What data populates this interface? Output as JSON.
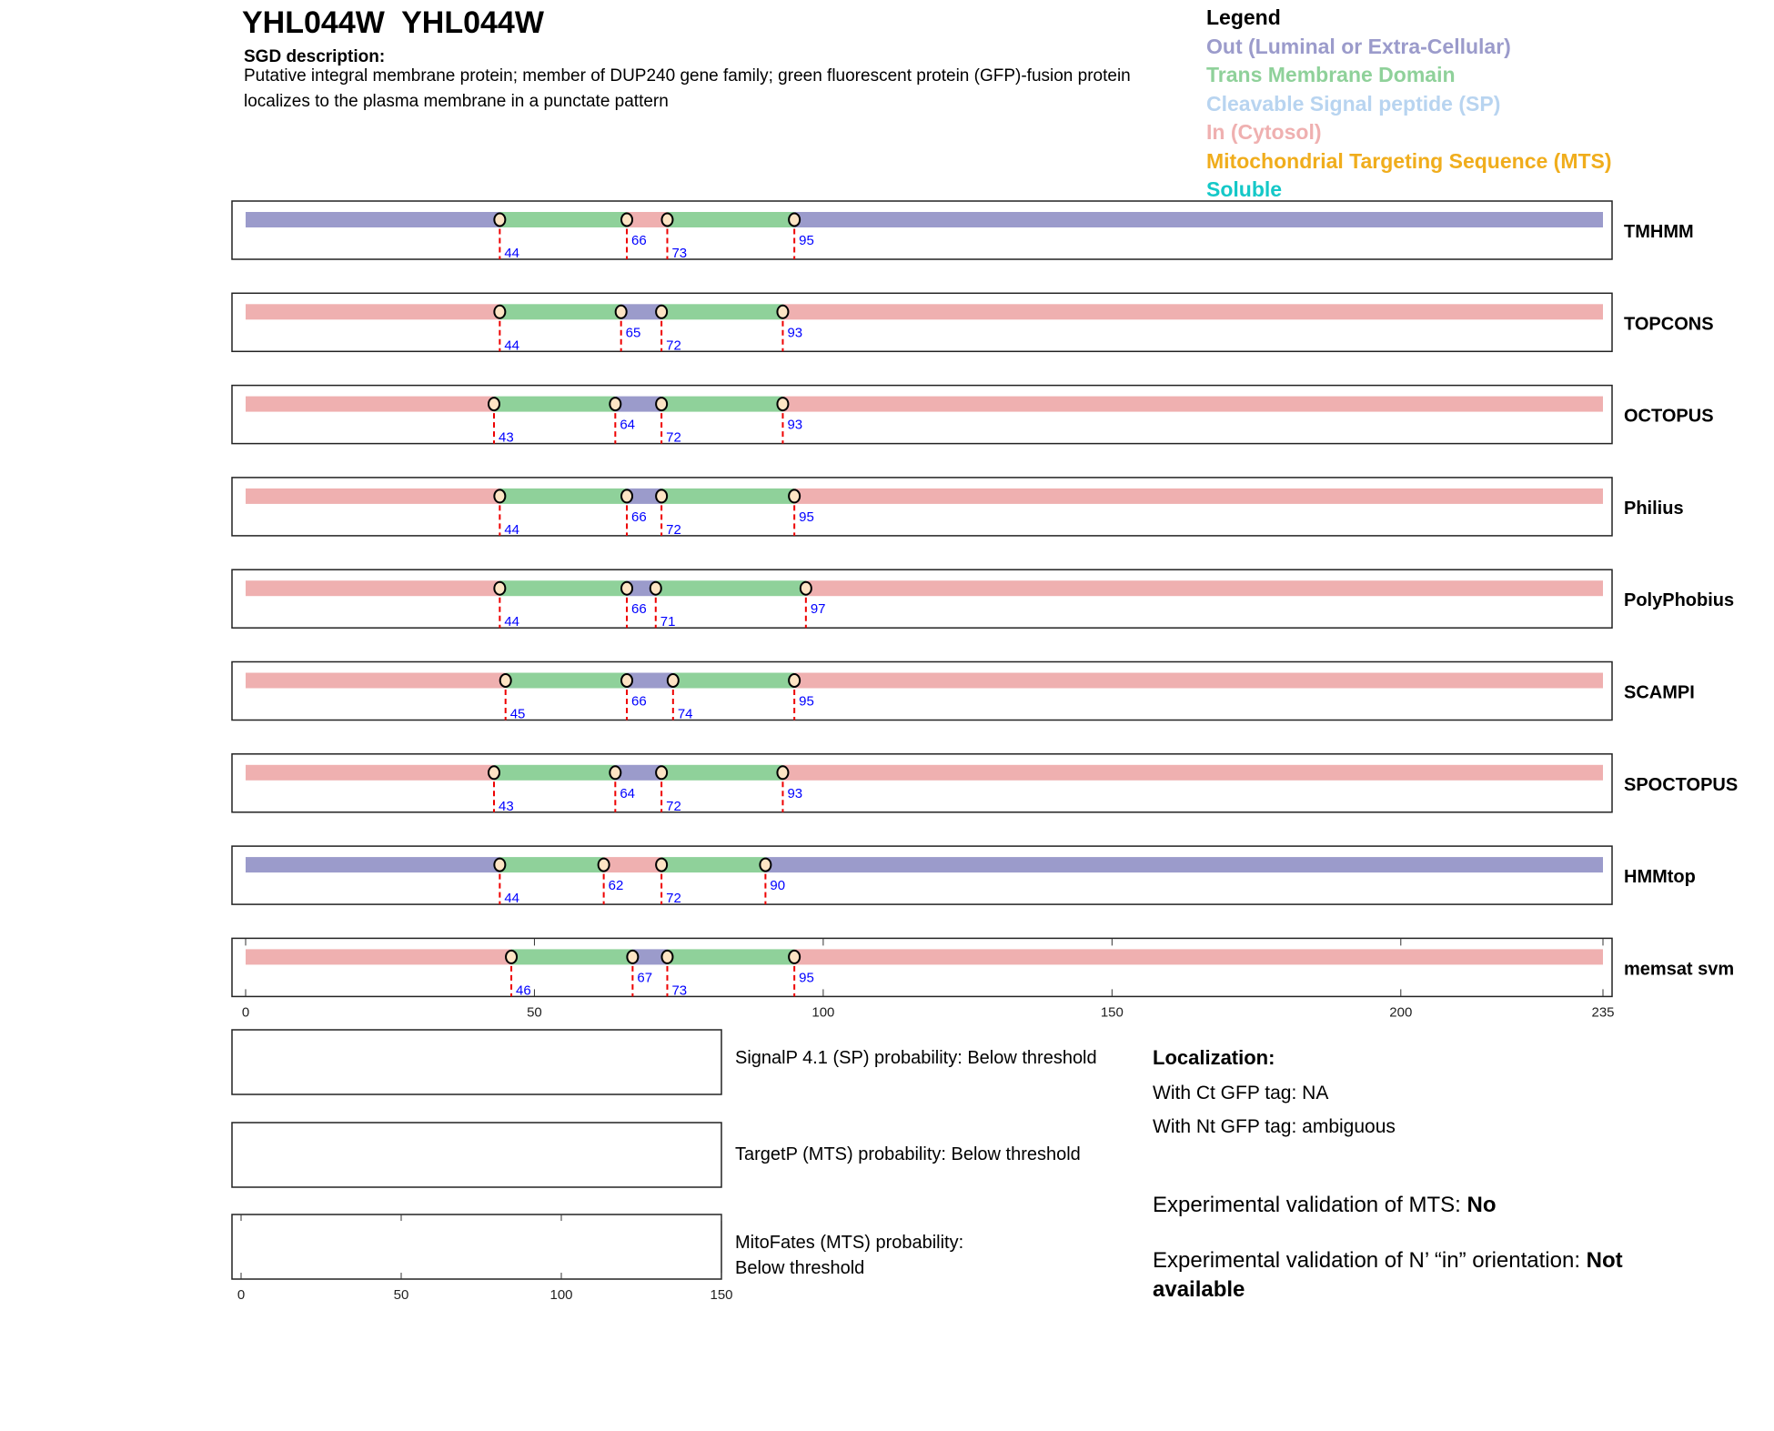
{
  "header": {
    "title": "YHL044W  YHL044W",
    "sgd_heading": "SGD description:",
    "sgd_text": "Putative integral membrane protein; member of DUP240 gene family; green fluorescent protein (GFP)-fusion protein localizes to the plasma membrane in a punctate pattern"
  },
  "legend": {
    "title": "Legend",
    "items": [
      {
        "label": "Out (Luminal or Extra-Cellular)",
        "color": "#9b9bcb"
      },
      {
        "label": "Trans Membrane Domain",
        "color": "#8fd19a"
      },
      {
        "label": "Cleavable Signal peptide (SP)",
        "color": "#b8d4f0"
      },
      {
        "label": "In (Cytosol)",
        "color": "#efb0b0"
      },
      {
        "label": "Mitochondrial Targeting Sequence (MTS)",
        "color": "#f0ad1c"
      },
      {
        "label": "Soluble",
        "color": "#14c8c8"
      }
    ]
  },
  "chart_data": {
    "type": "topology-track",
    "length": 235,
    "xticks": [
      0,
      50,
      100,
      150,
      200,
      235
    ],
    "colors": {
      "out": "#9b9bcb",
      "tm": "#8fd19a",
      "in": "#efb0b0"
    },
    "predictors": [
      {
        "name": "TMHMM",
        "start": "out",
        "boundaries": [
          44,
          66,
          73,
          95
        ]
      },
      {
        "name": "TOPCONS",
        "start": "in",
        "boundaries": [
          44,
          65,
          72,
          93
        ]
      },
      {
        "name": "OCTOPUS",
        "start": "in",
        "boundaries": [
          43,
          64,
          72,
          93
        ]
      },
      {
        "name": "Philius",
        "start": "in",
        "boundaries": [
          44,
          66,
          72,
          95
        ]
      },
      {
        "name": "PolyPhobius",
        "start": "in",
        "boundaries": [
          44,
          66,
          71,
          97
        ]
      },
      {
        "name": "SCAMPI",
        "start": "in",
        "boundaries": [
          45,
          66,
          74,
          95
        ]
      },
      {
        "name": "SPOCTOPUS",
        "start": "in",
        "boundaries": [
          43,
          64,
          72,
          93
        ]
      },
      {
        "name": "HMMtop",
        "start": "out",
        "boundaries": [
          44,
          62,
          72,
          90
        ]
      },
      {
        "name": "memsat svm",
        "start": "in",
        "boundaries": [
          46,
          67,
          73,
          95
        ]
      }
    ],
    "small_xticks": [
      0,
      50,
      100,
      150
    ]
  },
  "panels": [
    {
      "text": "SignalP 4.1 (SP) probability: Below threshold"
    },
    {
      "text": "TargetP (MTS) probability: Below threshold"
    },
    {
      "text": "MitoFates (MTS) probability: Below threshold"
    }
  ],
  "localization": {
    "heading": "Localization:",
    "ct": "With Ct GFP tag: NA",
    "nt": "With Nt GFP tag: ambiguous",
    "mts_label": "Experimental validation of MTS: ",
    "mts_value": "No",
    "orient_label": "Experimental validation of N’ “in” orientation: ",
    "orient_value": "Not available"
  }
}
